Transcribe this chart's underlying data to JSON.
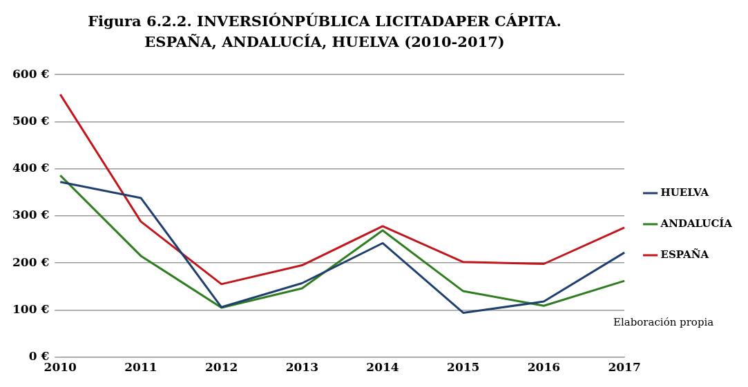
{
  "chart_data": {
    "type": "line",
    "title": "Figura 6.2.2. INVERSIÓNPÚBLICA LICITADAPER CÁPITA.\nESPAÑA, ANDALUCÍA, HUELVA (2010-2017)",
    "categories": [
      "2010",
      "2011",
      "2012",
      "2013",
      "2014",
      "2015",
      "2016",
      "2017"
    ],
    "series": [
      {
        "name": "HUELVA",
        "color": "#1f3f6e",
        "values": [
          372,
          338,
          106,
          157,
          242,
          94,
          118,
          222
        ]
      },
      {
        "name": "ANDALUCÍA",
        "color": "#2e7d1f",
        "values": [
          386,
          215,
          105,
          146,
          269,
          140,
          109,
          162
        ]
      },
      {
        "name": "ESPAÑA",
        "color": "#c0161c",
        "values": [
          558,
          288,
          155,
          195,
          278,
          202,
          198,
          275
        ]
      }
    ],
    "ylim": [
      0,
      600
    ],
    "yticks": [
      {
        "value": 0,
        "label": "0 €"
      },
      {
        "value": 100,
        "label": "100 €"
      },
      {
        "value": 200,
        "label": "200 €"
      },
      {
        "value": 300,
        "label": "300 €"
      },
      {
        "value": 400,
        "label": "400 €"
      },
      {
        "value": 500,
        "label": "500 €"
      },
      {
        "value": 600,
        "label": "600 €"
      }
    ],
    "grid": "y",
    "legend": "right",
    "marker": "none",
    "line_style": "solid",
    "annotations": [
      "Elaboración propia"
    ]
  }
}
